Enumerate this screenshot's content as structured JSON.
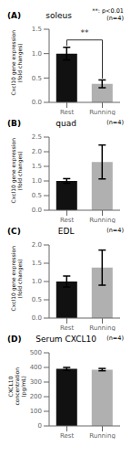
{
  "chart_data": [
    {
      "type": "bar",
      "title": "soleus",
      "categories": [
        "Rest",
        "Running"
      ],
      "values": [
        1.0,
        0.38
      ],
      "errors": [
        0.13,
        0.08
      ],
      "colors": [
        "#111111",
        "#b0b0b0"
      ],
      "ylim": [
        0,
        1.5
      ],
      "yticks": [
        {
          "value": 0.0,
          "label": "0.0"
        },
        0.5,
        {
          "value": 1.0,
          "label": "1.0"
        },
        1.5
      ],
      "ylabel": "Cxcl10 gene expression\n(fold changes)",
      "annotations": [
        "(A)",
        "**: p<0.01\n(n=4)",
        "**"
      ]
    },
    {
      "type": "bar",
      "title": "quad",
      "categories": [
        "Rest",
        "Running"
      ],
      "values": [
        1.0,
        1.65
      ],
      "errors": [
        0.08,
        0.58
      ],
      "colors": [
        "#111111",
        "#b0b0b0"
      ],
      "ylim": [
        0,
        2.5
      ],
      "yticks": [
        {
          "value": 0.0,
          "label": "0.0"
        },
        0.5,
        {
          "value": 1.0,
          "label": "1.0"
        },
        1.5,
        {
          "value": 2.0,
          "label": "2.0"
        },
        2.5
      ],
      "ylabel": "Cxcl10 gene expression\n(fold changes)",
      "annotations": [
        "(B)",
        "(n=4)"
      ]
    },
    {
      "type": "bar",
      "title": "EDL",
      "categories": [
        "Rest",
        "Running"
      ],
      "values": [
        1.0,
        1.38
      ],
      "errors": [
        0.15,
        0.48
      ],
      "colors": [
        "#111111",
        "#b0b0b0"
      ],
      "ylim": [
        0,
        2.0
      ],
      "yticks": [
        {
          "value": 0.0,
          "label": "0.0"
        },
        0.5,
        {
          "value": 1.0,
          "label": "1.0"
        },
        1.5,
        {
          "value": 2.0,
          "label": "2.0"
        }
      ],
      "ylabel": "Cxcl10 gene expression\n(fold changes)",
      "annotations": [
        "(C)",
        "(n=4)"
      ]
    },
    {
      "type": "bar",
      "title": "Serum CXCL10",
      "categories": [
        "Rest",
        "Running"
      ],
      "values": [
        390,
        385
      ],
      "errors": [
        10,
        8
      ],
      "colors": [
        "#111111",
        "#b0b0b0"
      ],
      "ylim": [
        0,
        500
      ],
      "yticks": [
        0,
        100,
        200,
        300,
        400,
        500
      ],
      "ylabel": "CXCL10\nconcentration\n(pg/mL)",
      "annotations": [
        "(D)",
        "(n=4)"
      ]
    }
  ]
}
